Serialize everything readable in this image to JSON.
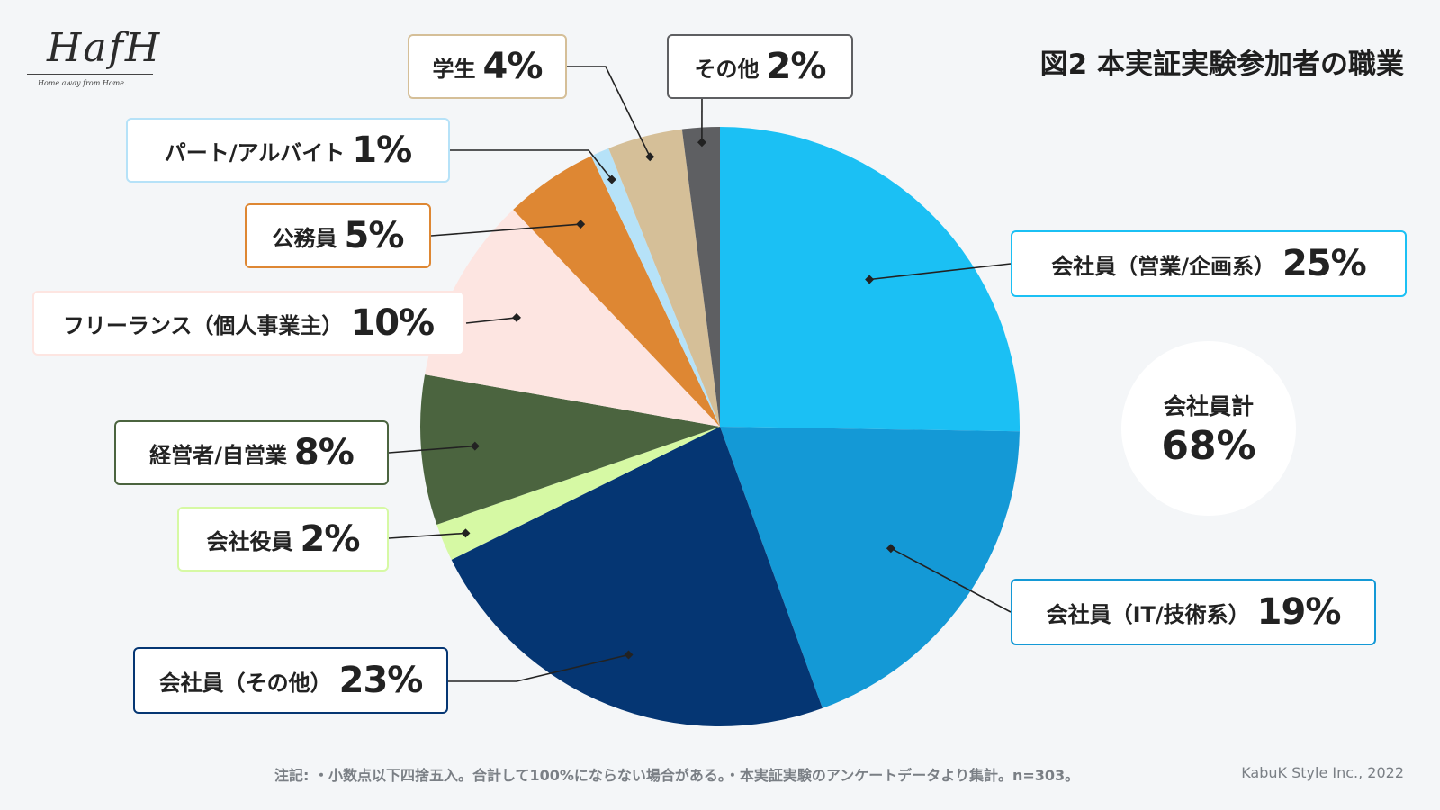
{
  "logo": {
    "text": "HafH",
    "tagline": "Home away from Home."
  },
  "title": "図2 本実証実験参加者の職業",
  "summary": {
    "label": "会社員計",
    "value": "68%"
  },
  "footnote": "注記:  ・小数点以下四捨五入。合計して100%にならない場合がある。・本実証実験のアンケートデータより集計。n=303。",
  "credit": "KabuK Style Inc., 2022",
  "chart_data": {
    "type": "pie",
    "title": "図2 本実証実験参加者の職業",
    "unit": "%",
    "start": "12 o'clock, clockwise",
    "slices": [
      {
        "key": "sales",
        "label": "会社員（営業/企画系）",
        "value": 25,
        "color": "#1bc0f4",
        "border": "#1bc0f4"
      },
      {
        "key": "it",
        "label": "会社員（IT/技術系）",
        "value": 19,
        "color": "#1499d6",
        "border": "#1499d6"
      },
      {
        "key": "other_emp",
        "label": "会社員（その他）",
        "value": 23,
        "color": "#053673",
        "border": "#053673"
      },
      {
        "key": "officer",
        "label": "会社役員",
        "value": 2,
        "color": "#d6f9a4",
        "border": "#d6f9a4"
      },
      {
        "key": "manager",
        "label": "経営者/自営業",
        "value": 8,
        "color": "#4b643f",
        "border": "#4b643f"
      },
      {
        "key": "freelance",
        "label": "フリーランス（個人事業主）",
        "value": 10,
        "color": "#fde5e1",
        "border": "#fde5e1"
      },
      {
        "key": "civil",
        "label": "公務員",
        "value": 5,
        "color": "#de8733",
        "border": "#de8733"
      },
      {
        "key": "parttime",
        "label": "パート/アルバイト",
        "value": 1,
        "color": "#b6e2f8",
        "border": "#b6e2f8"
      },
      {
        "key": "student",
        "label": "学生",
        "value": 4,
        "color": "#d5bf98",
        "border": "#d5bf98"
      },
      {
        "key": "other",
        "label": "その他",
        "value": 2,
        "color": "#5e5f62",
        "border": "#5e5f62"
      }
    ]
  }
}
